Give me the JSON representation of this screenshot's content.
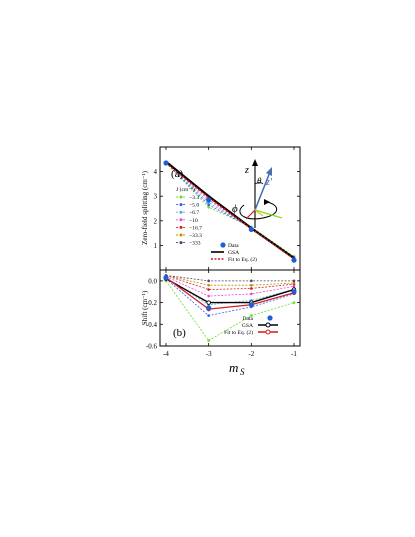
{
  "chart_data": [
    {
      "panel_label": "(a)",
      "type": "line",
      "ylabel": "Zero-field splitting (cm⁻¹)",
      "ylim": [
        0,
        5
      ],
      "xlim": [
        -4,
        -1
      ],
      "x": [
        -4,
        -3,
        -2,
        -1
      ],
      "y_ticks": [
        "1",
        "2",
        "3",
        "4"
      ],
      "legend_J": {
        "title": "J (cm⁻¹)",
        "entries": [
          {
            "label": "−3.3",
            "color": "#66dd33"
          },
          {
            "label": "−5.0",
            "color": "#4455ee"
          },
          {
            "label": "−6.7",
            "color": "#55aacc"
          },
          {
            "label": "−10",
            "color": "#ee44dd"
          },
          {
            "label": "−16.7",
            "color": "#cc2222"
          },
          {
            "label": "−33.3",
            "color": "#cc8800"
          },
          {
            "label": "−333",
            "color": "#444466"
          }
        ]
      },
      "legend_main": {
        "data": "Data",
        "gsa": "GSA",
        "fit": "Fit to Eq. (2)"
      },
      "data_points": [
        4.35,
        2.85,
        1.65,
        0.4
      ],
      "gsa_line": [
        4.4,
        3.0,
        1.7,
        0.48
      ],
      "fit_line": [
        4.35,
        2.95,
        1.68,
        0.45
      ],
      "J_series": [
        {
          "name": "−3.3",
          "values": [
            4.35,
            2.55,
            1.75,
            0.55
          ]
        },
        {
          "name": "−5.0",
          "values": [
            4.35,
            2.65,
            1.72,
            0.52
          ]
        },
        {
          "name": "−6.7",
          "values": [
            4.35,
            2.75,
            1.7,
            0.5
          ]
        },
        {
          "name": "−10",
          "values": [
            4.36,
            2.85,
            1.68,
            0.48
          ]
        },
        {
          "name": "−16.7",
          "values": [
            4.37,
            2.92,
            1.67,
            0.47
          ]
        },
        {
          "name": "−33.3",
          "values": [
            4.38,
            2.97,
            1.66,
            0.46
          ]
        },
        {
          "name": "−333",
          "values": [
            4.38,
            3.0,
            1.65,
            0.46
          ]
        }
      ],
      "inset_labels": {
        "z": "z",
        "zprime": "z′",
        "theta": "θ",
        "phi": "ϕ"
      }
    },
    {
      "panel_label": "(b)",
      "type": "line",
      "ylabel": "Shift (cm⁻¹)",
      "xlabel": "m",
      "xlabel_sub": "S",
      "ylim": [
        -0.6,
        0.1
      ],
      "xlim": [
        -4,
        -1
      ],
      "x": [
        -4,
        -3,
        -2,
        -1
      ],
      "x_ticks": [
        "-4",
        "-3",
        "-2",
        "-1"
      ],
      "y_ticks": [
        "0.0",
        "-0.2",
        "-0.4",
        "-0.6"
      ],
      "legend_main": {
        "data": "Data",
        "gsa": "GSA",
        "fit": "Fit to Eq. (2)"
      },
      "data_points": [
        0.03,
        -0.25,
        -0.22,
        -0.1
      ],
      "gsa_line": [
        0.02,
        -0.2,
        -0.2,
        -0.08
      ],
      "fit_line": [
        0.03,
        -0.26,
        -0.22,
        -0.11
      ],
      "J_series": [
        {
          "name": "−3.3",
          "values": [
            0.0,
            -0.55,
            -0.32,
            -0.2
          ]
        },
        {
          "name": "−5.0",
          "values": [
            0.02,
            -0.32,
            -0.24,
            -0.12
          ]
        },
        {
          "name": "−6.7",
          "values": [
            0.03,
            -0.22,
            -0.18,
            -0.08
          ]
        },
        {
          "name": "−10",
          "values": [
            0.04,
            -0.14,
            -0.12,
            -0.05
          ]
        },
        {
          "name": "−16.7",
          "values": [
            0.05,
            -0.08,
            -0.07,
            -0.03
          ]
        },
        {
          "name": "−33.3",
          "values": [
            0.05,
            -0.04,
            -0.04,
            -0.02
          ]
        },
        {
          "name": "−333",
          "values": [
            0.05,
            0.0,
            0.0,
            0.0
          ]
        }
      ]
    }
  ]
}
